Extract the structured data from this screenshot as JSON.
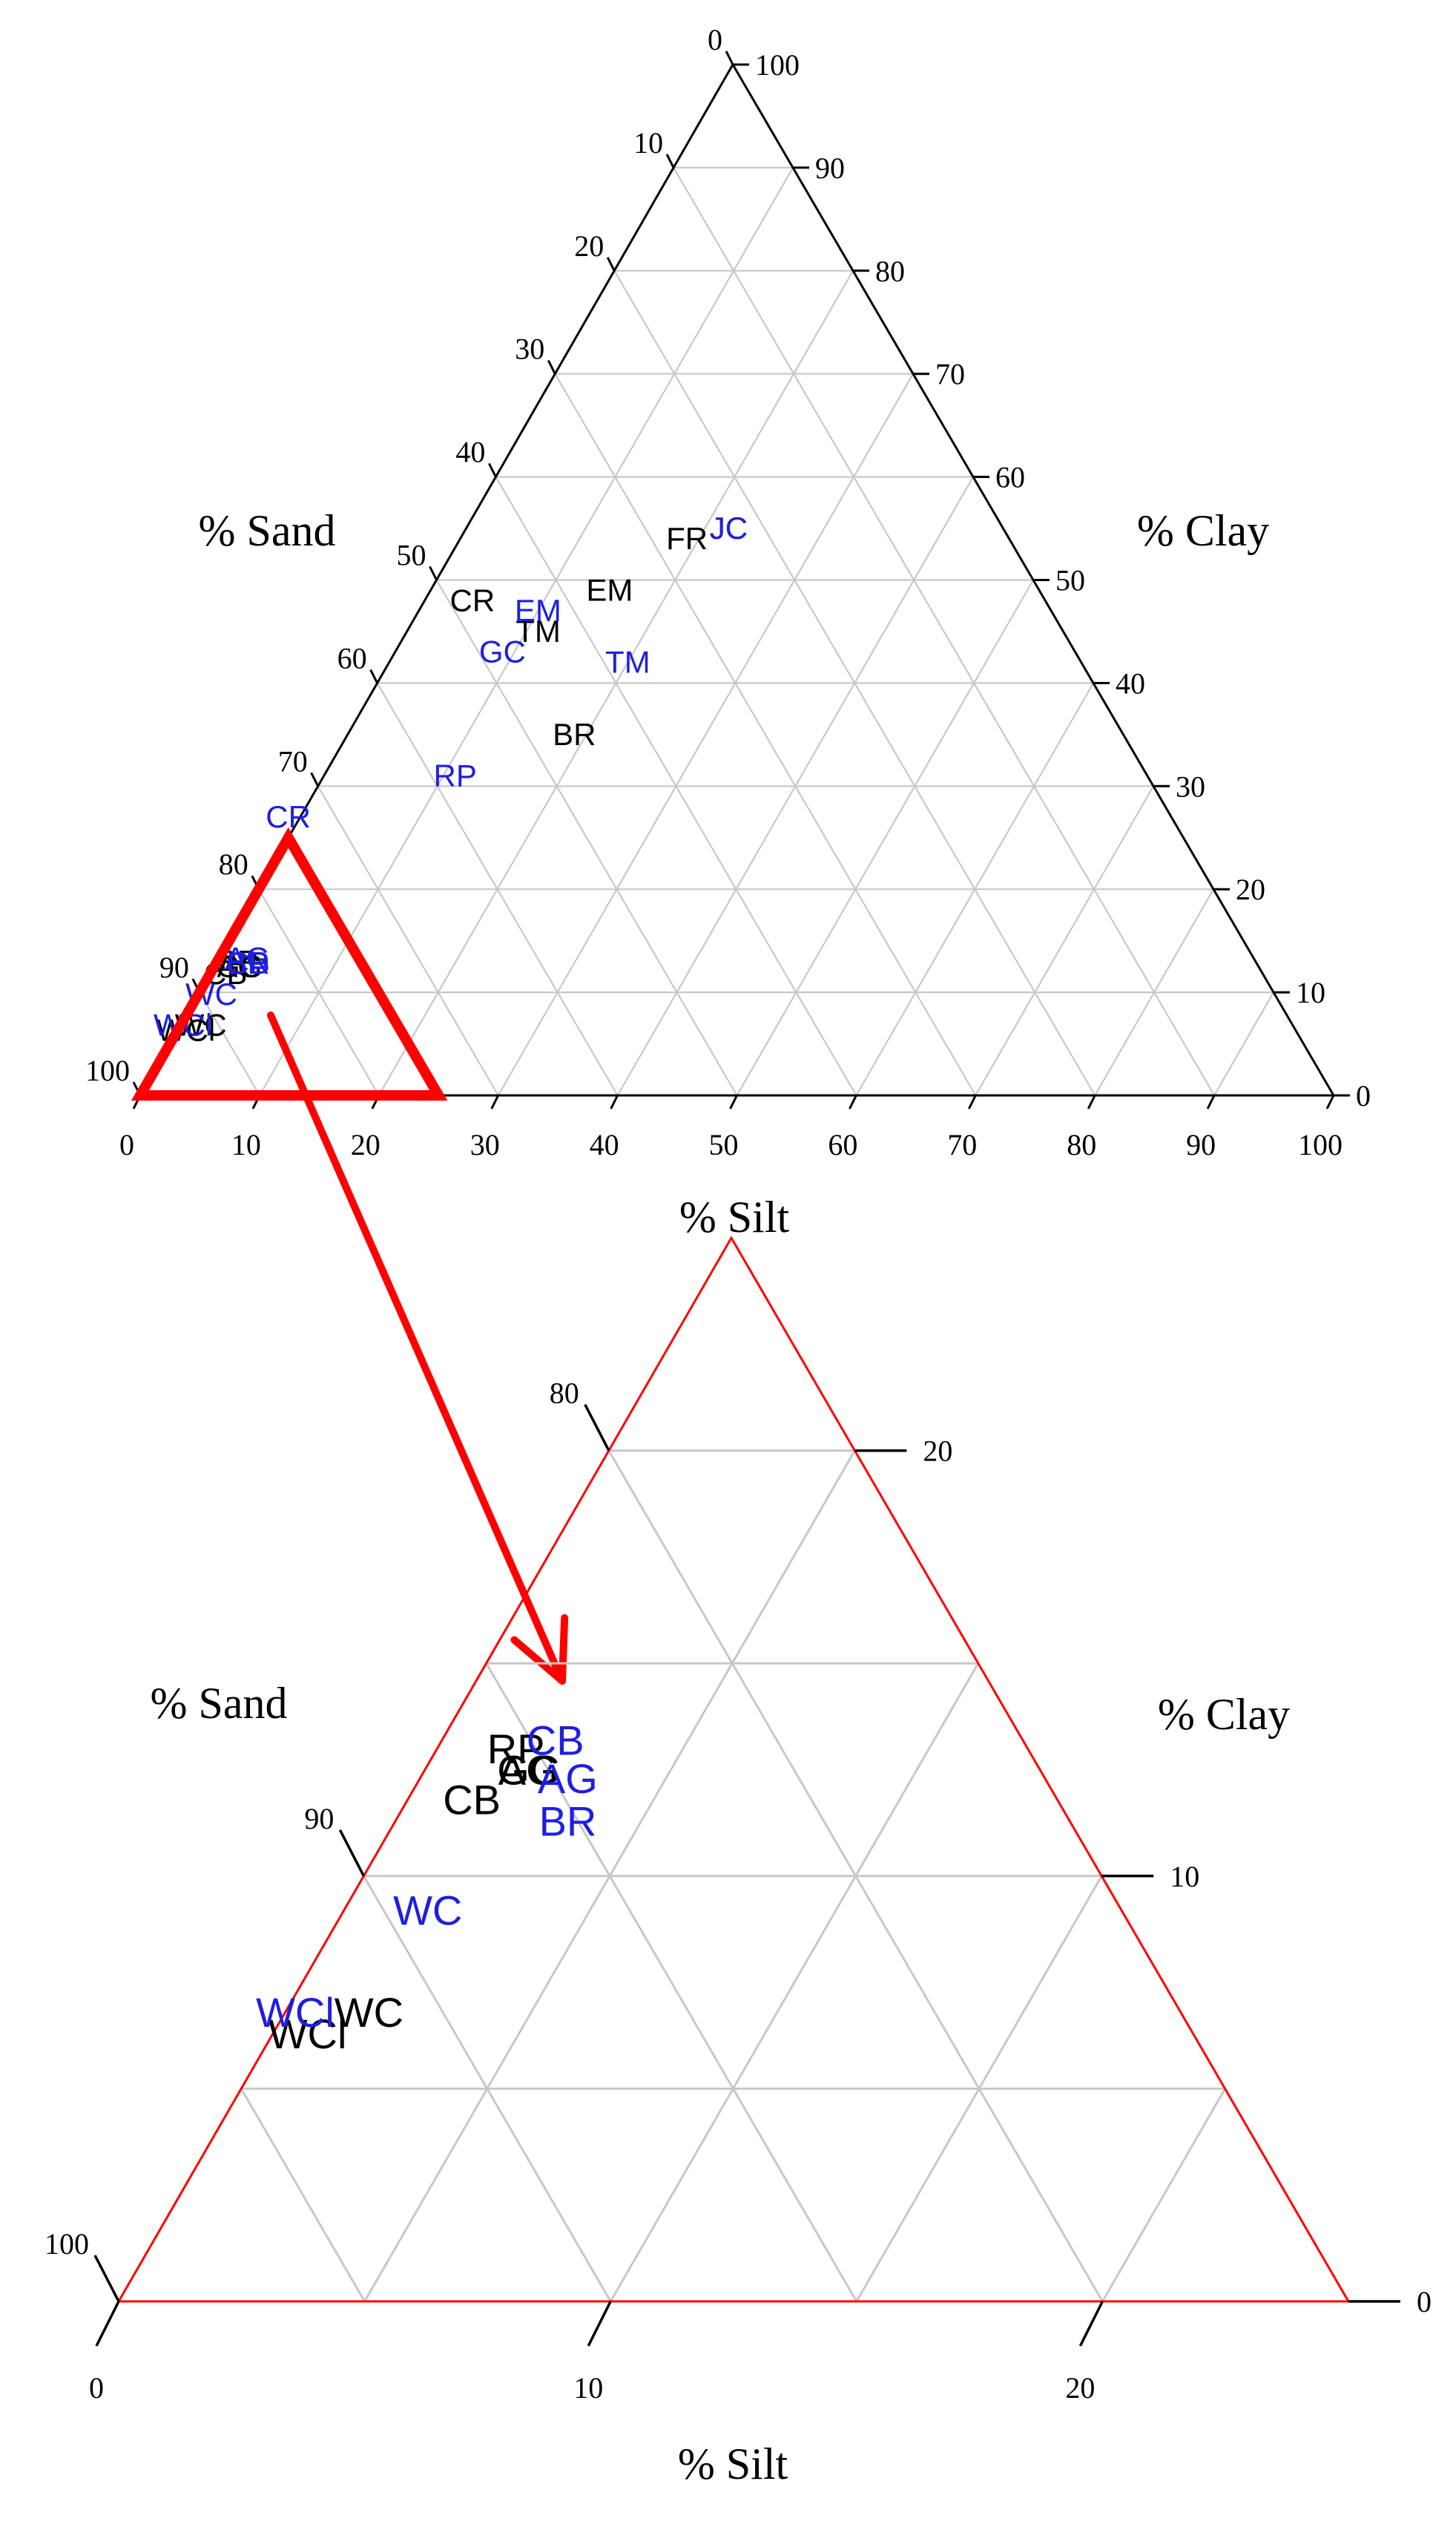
{
  "chart_data": [
    {
      "type": "scatter",
      "subtype": "ternary",
      "title": "",
      "axes": {
        "sand": {
          "label": "% Sand",
          "ticks": [
            "0",
            "10",
            "20",
            "30",
            "40",
            "50",
            "60",
            "70",
            "80",
            "90",
            "100"
          ]
        },
        "clay": {
          "label": "% Clay",
          "ticks": [
            "0",
            "10",
            "20",
            "30",
            "40",
            "50",
            "60",
            "70",
            "80",
            "90",
            "100"
          ]
        },
        "silt": {
          "label": "% Silt",
          "ticks": [
            "0",
            "10",
            "20",
            "30",
            "40",
            "50",
            "60",
            "70",
            "80",
            "90",
            "100"
          ]
        }
      },
      "grid": true,
      "series": [
        {
          "color": "#000000",
          "points": [
            {
              "label": "JC",
              "sand": 23,
              "clay": 55,
              "silt": 22
            },
            {
              "label": "FR",
              "sand": 27,
              "clay": 54,
              "silt": 19
            },
            {
              "label": "EM",
              "sand": 36,
              "clay": 49,
              "silt": 15
            },
            {
              "label": "CR",
              "sand": 48,
              "clay": 48,
              "silt": 4
            },
            {
              "label": "TM",
              "sand": 44,
              "clay": 45,
              "silt": 11
            },
            {
              "label": "BR",
              "sand": 46,
              "clay": 35,
              "silt": 19
            },
            {
              "label": "RP",
              "sand": 85.4,
              "clay": 13.0,
              "silt": 1.6
            },
            {
              "label": "CB",
              "sand": 86.9,
              "clay": 11.8,
              "silt": 1.3
            },
            {
              "label": "AG",
              "sand": 85.4,
              "clay": 12.5,
              "silt": 2.1
            },
            {
              "label": "GC",
              "sand": 85.4,
              "clay": 12.5,
              "silt": 2.1
            },
            {
              "label": "WC",
              "sand": 91.5,
              "clay": 6.8,
              "silt": 1.7
            },
            {
              "label": "WCl",
              "sand": 93.0,
              "clay": 6.3,
              "silt": 0.7
            }
          ]
        },
        {
          "color": "#1f1fe0",
          "points": [
            {
              "label": "JC",
              "sand": 23,
              "clay": 55,
              "silt": 22
            },
            {
              "label": "EM",
              "sand": 43,
              "clay": 47,
              "silt": 10
            },
            {
              "label": "GC",
              "sand": 48,
              "clay": 43,
              "silt": 9
            },
            {
              "label": "TM",
              "sand": 38,
              "clay": 42,
              "silt": 20
            },
            {
              "label": "RP",
              "sand": 58,
              "clay": 31,
              "silt": 11
            },
            {
              "label": "CR",
              "sand": 74,
              "clay": 27,
              "silt": -1
            },
            {
              "label": "CB",
              "sand": 84.5,
              "clay": 12.8,
              "silt": 2.7
            },
            {
              "label": "AG",
              "sand": 84.3,
              "clay": 13.3,
              "silt": 2.4
            },
            {
              "label": "BR",
              "sand": 84.5,
              "clay": 12.8,
              "silt": 2.7
            },
            {
              "label": "WC",
              "sand": 89.1,
              "clay": 9.8,
              "silt": 1.1
            },
            {
              "label": "WCl",
              "sand": 93.0,
              "clay": 6.8,
              "silt": 0.2
            }
          ]
        }
      ]
    },
    {
      "type": "scatter",
      "subtype": "ternary",
      "title": "",
      "axes": {
        "sand": {
          "label": "% Sand",
          "ticks": [
            "80",
            "90",
            "100"
          ]
        },
        "clay": {
          "label": "% Clay",
          "ticks": [
            "20",
            "10",
            "0"
          ]
        },
        "silt": {
          "label": "% Silt",
          "ticks": [
            "0",
            "10",
            "20"
          ]
        }
      },
      "grid": true,
      "highlight_color": "#ff0000",
      "series": [
        {
          "color": "#000000",
          "points": [
            {
              "label": "RP",
              "sand": 85.4,
              "clay": 13.0,
              "silt": 1.6
            },
            {
              "label": "CB",
              "sand": 86.9,
              "clay": 11.8,
              "silt": 1.3
            },
            {
              "label": "AG",
              "sand": 85.4,
              "clay": 12.5,
              "silt": 2.1
            },
            {
              "label": "GC",
              "sand": 85.4,
              "clay": 12.5,
              "silt": 2.1
            },
            {
              "label": "WC",
              "sand": 91.5,
              "clay": 6.8,
              "silt": 1.7
            },
            {
              "label": "WCl",
              "sand": 93.0,
              "clay": 6.3,
              "silt": 0.7
            }
          ]
        },
        {
          "color": "#1f1fe0",
          "points": [
            {
              "label": "CB",
              "sand": 84.5,
              "clay": 13.2,
              "silt": 2.3
            },
            {
              "label": "AG",
              "sand": 84.7,
              "clay": 12.3,
              "silt": 3.0
            },
            {
              "label": "BR",
              "sand": 85.2,
              "clay": 11.3,
              "silt": 3.5
            },
            {
              "label": "WC",
              "sand": 89.1,
              "clay": 9.2,
              "silt": 1.7
            },
            {
              "label": "WCl",
              "sand": 93.0,
              "clay": 6.8,
              "silt": 0.2
            }
          ]
        }
      ]
    }
  ]
}
